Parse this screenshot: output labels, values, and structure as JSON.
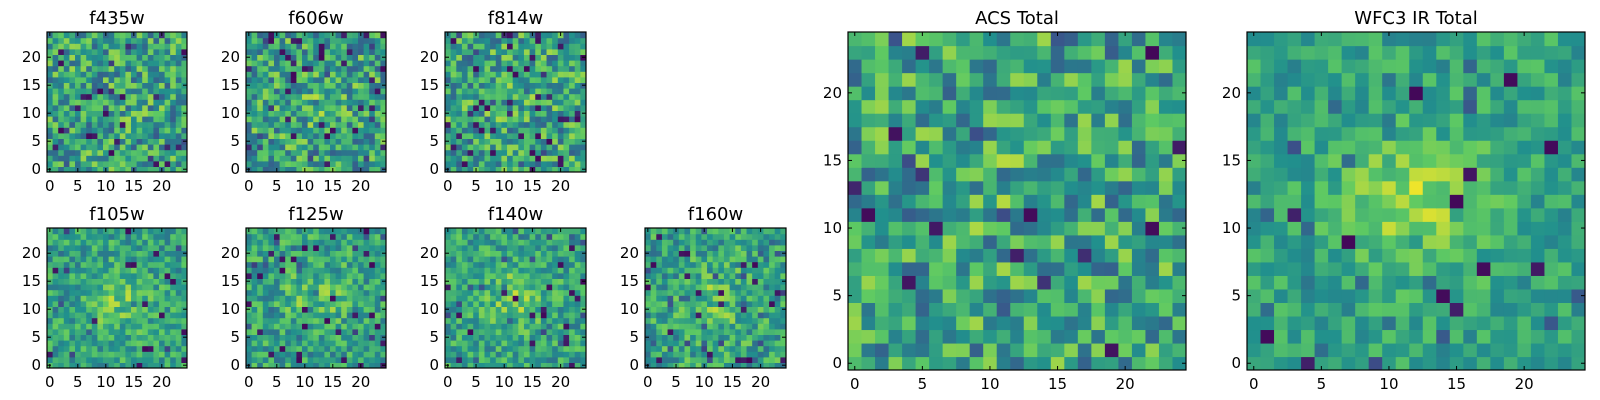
{
  "chart_data": {
    "type": "heatmap",
    "colormap": "viridis",
    "colormap_colors": [
      "#440154",
      "#3b528b",
      "#21908d",
      "#5dc963",
      "#fde725"
    ],
    "grid_size": 25,
    "panels": [
      {
        "title": "f435w",
        "xticks": [
          "0",
          "5",
          "10",
          "15",
          "20"
        ],
        "yticks": [
          "0",
          "5",
          "10",
          "15",
          "20"
        ],
        "xlim": [
          0,
          25
        ],
        "ylim": [
          0,
          25
        ],
        "blob": 0.05,
        "dark": 0.04,
        "noise": 1.0,
        "seed": 11
      },
      {
        "title": "f606w",
        "xticks": [
          "0",
          "5",
          "10",
          "15",
          "20"
        ],
        "yticks": [
          "0",
          "5",
          "10",
          "15",
          "20"
        ],
        "xlim": [
          0,
          25
        ],
        "ylim": [
          0,
          25
        ],
        "blob": 0.15,
        "dark": 0.035,
        "noise": 1.0,
        "seed": 23
      },
      {
        "title": "f814w",
        "xticks": [
          "0",
          "5",
          "10",
          "15",
          "20"
        ],
        "yticks": [
          "0",
          "5",
          "10",
          "15",
          "20"
        ],
        "xlim": [
          0,
          25
        ],
        "ylim": [
          0,
          25
        ],
        "blob": 0.1,
        "dark": 0.05,
        "noise": 1.0,
        "seed": 37
      },
      {
        "title": "f105w",
        "xticks": [
          "0",
          "5",
          "10",
          "15",
          "20"
        ],
        "yticks": [
          "0",
          "5",
          "10",
          "15",
          "20"
        ],
        "xlim": [
          0,
          25
        ],
        "ylim": [
          0,
          25
        ],
        "blob": 0.45,
        "dark": 0.03,
        "noise": 0.7,
        "seed": 41
      },
      {
        "title": "f125w",
        "xticks": [
          "0",
          "5",
          "10",
          "15",
          "20"
        ],
        "yticks": [
          "0",
          "5",
          "10",
          "15",
          "20"
        ],
        "xlim": [
          0,
          25
        ],
        "ylim": [
          0,
          25
        ],
        "blob": 0.4,
        "dark": 0.04,
        "noise": 0.75,
        "seed": 53
      },
      {
        "title": "f140w",
        "xticks": [
          "0",
          "5",
          "10",
          "15",
          "20"
        ],
        "yticks": [
          "0",
          "5",
          "10",
          "15",
          "20"
        ],
        "xlim": [
          0,
          25
        ],
        "ylim": [
          0,
          25
        ],
        "blob": 0.5,
        "dark": 0.03,
        "noise": 0.7,
        "seed": 67
      },
      {
        "title": "f160w",
        "xticks": [
          "0",
          "5",
          "10",
          "15",
          "20"
        ],
        "yticks": [
          "0",
          "5",
          "10",
          "15",
          "20"
        ],
        "xlim": [
          0,
          25
        ],
        "ylim": [
          0,
          25
        ],
        "blob": 0.35,
        "dark": 0.04,
        "noise": 0.8,
        "seed": 79
      },
      {
        "title": "ACS Total",
        "xticks": [
          "0",
          "5",
          "10",
          "15",
          "20"
        ],
        "yticks": [
          "0",
          "5",
          "10",
          "15",
          "20"
        ],
        "xlim": [
          0,
          25
        ],
        "ylim": [
          0,
          25
        ],
        "blob": 0.15,
        "dark": 0.025,
        "noise": 1.0,
        "seed": 83
      },
      {
        "title": "WFC3 IR Total",
        "xticks": [
          "0",
          "5",
          "10",
          "15",
          "20"
        ],
        "yticks": [
          "0",
          "5",
          "10",
          "15",
          "20"
        ],
        "xlim": [
          0,
          25
        ],
        "ylim": [
          0,
          25
        ],
        "blob": 0.75,
        "dark": 0.02,
        "noise": 0.55,
        "seed": 97
      }
    ]
  }
}
